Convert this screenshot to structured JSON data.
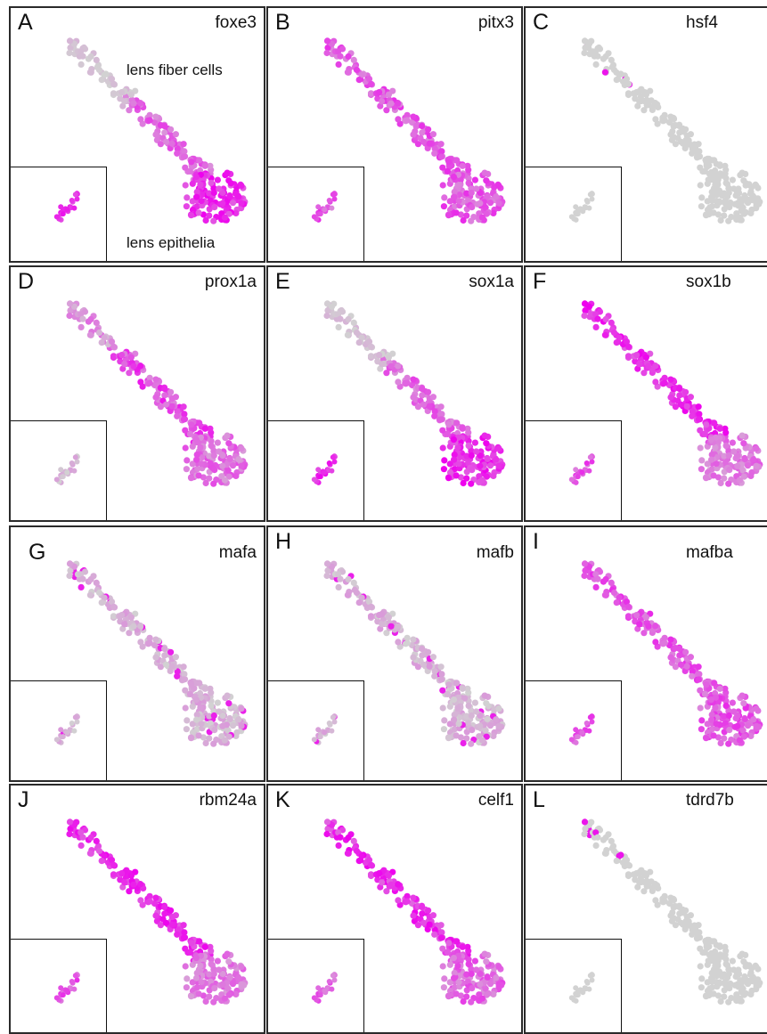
{
  "figure": {
    "annotations": {
      "fiber": "lens fiber cells",
      "epithelia": "lens epithelia"
    },
    "colors": {
      "low_expression": "#d2d2d2",
      "high_expression": "#ee00ee",
      "panel_border": "#2a2a2a"
    }
  },
  "chart_data": [
    {
      "type": "scatter",
      "letter": "A",
      "gene": "foxe3",
      "expression_pattern": "epithelia-high",
      "colored_region": "lens epithelia (cluster and inset)"
    },
    {
      "type": "scatter",
      "letter": "B",
      "gene": "pitx3",
      "expression_pattern": "broad",
      "colored_region": "whole trajectory and inset"
    },
    {
      "type": "scatter",
      "letter": "C",
      "gene": "hsf4",
      "expression_pattern": "sparse-fiber",
      "colored_region": "few fiber cells only"
    },
    {
      "type": "scatter",
      "letter": "D",
      "gene": "prox1a",
      "expression_pattern": "middle-fiber",
      "colored_region": "fiber trajectory and epithelia"
    },
    {
      "type": "scatter",
      "letter": "E",
      "gene": "sox1a",
      "expression_pattern": "epithelia-high",
      "colored_region": "trajectory and epithelia"
    },
    {
      "type": "scatter",
      "letter": "F",
      "gene": "sox1b",
      "expression_pattern": "fiber-high",
      "colored_region": "fiber trajectory and inset"
    },
    {
      "type": "scatter",
      "letter": "G",
      "gene": "mafa",
      "expression_pattern": "weak",
      "colored_region": "weak, mid trajectory"
    },
    {
      "type": "scatter",
      "letter": "H",
      "gene": "mafb",
      "expression_pattern": "weak",
      "colored_region": "weak, mostly grey"
    },
    {
      "type": "scatter",
      "letter": "I",
      "gene": "mafba",
      "expression_pattern": "broad",
      "colored_region": "trajectory and epithelia"
    },
    {
      "type": "scatter",
      "letter": "J",
      "gene": "rbm24a",
      "expression_pattern": "fiber-high",
      "colored_region": "strong along fiber trajectory"
    },
    {
      "type": "scatter",
      "letter": "K",
      "gene": "celf1",
      "expression_pattern": "broad-strong",
      "colored_region": "strong along trajectory"
    },
    {
      "type": "scatter",
      "letter": "L",
      "gene": "tdrd7b",
      "expression_pattern": "sparse-fiber",
      "colored_region": "few fiber cells only"
    }
  ]
}
